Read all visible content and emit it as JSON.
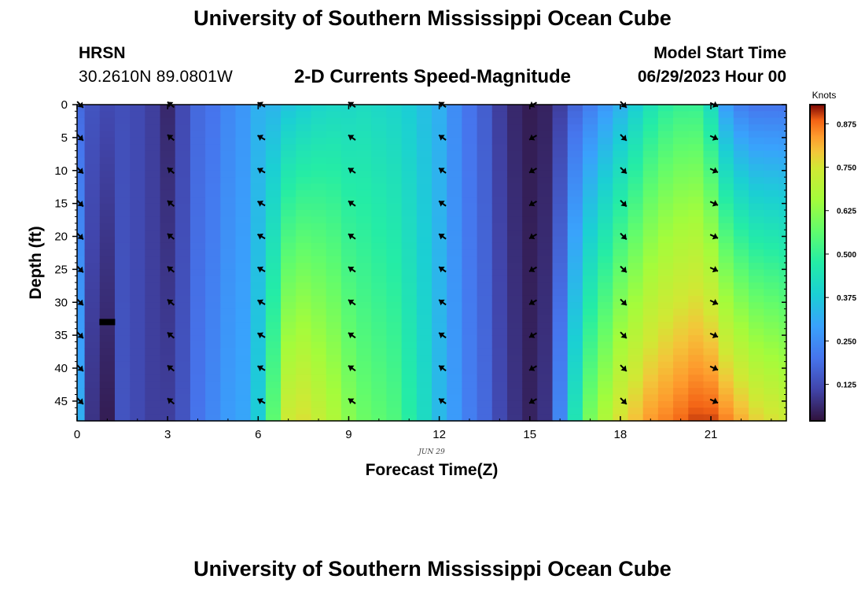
{
  "header": {
    "title": "University of Southern Mississippi Ocean Cube",
    "station": "HRSN",
    "coordinates": "30.2610N  89.0801W",
    "subtitle": "2-D Currents Speed-Magnitude",
    "model_start_label": "Model Start Time",
    "model_start_value": "06/29/2023 Hour 00"
  },
  "footer": {
    "title": "University of Southern Mississippi Ocean Cube"
  },
  "colors": {
    "arrow": "#000000",
    "gap_marker": "#000000"
  },
  "chart_data": {
    "type": "heatmap",
    "title": "2-D Currents Speed-Magnitude",
    "xlabel": "Forecast Time(Z)",
    "ylabel": "Depth (ft)",
    "date_label": "JUN 29",
    "xlim": [
      0,
      23.5
    ],
    "ylim": [
      0,
      48
    ],
    "x_ticks": [
      0,
      3,
      6,
      9,
      12,
      15,
      18,
      21
    ],
    "y_ticks": [
      0,
      5,
      10,
      15,
      20,
      25,
      30,
      35,
      40,
      45
    ],
    "colorbar": {
      "unit": "Knots",
      "range": [
        0.02,
        0.93
      ],
      "ticks": [
        "0.125",
        "0.250",
        "0.375",
        "0.500",
        "0.625",
        "0.750",
        "0.875"
      ],
      "tick_values": [
        0.125,
        0.25,
        0.375,
        0.5,
        0.625,
        0.75,
        0.875
      ]
    },
    "hours": [
      0,
      0.5,
      1,
      1.5,
      2,
      2.5,
      3,
      3.5,
      4,
      4.5,
      5,
      5.5,
      6,
      6.5,
      7,
      7.5,
      8,
      8.5,
      9,
      9.5,
      10,
      10.5,
      11,
      11.5,
      12,
      12.5,
      13,
      13.5,
      14,
      14.5,
      15,
      15.5,
      16,
      16.5,
      17,
      17.5,
      18,
      18.5,
      19,
      19.5,
      20,
      20.5,
      21,
      21.5,
      22,
      22.5,
      23,
      23.5
    ],
    "surface_speed_knots": [
      0.18,
      0.14,
      0.12,
      0.13,
      0.12,
      0.1,
      0.06,
      0.12,
      0.18,
      0.2,
      0.24,
      0.27,
      0.32,
      0.33,
      0.36,
      0.38,
      0.4,
      0.41,
      0.41,
      0.42,
      0.41,
      0.4,
      0.38,
      0.35,
      0.32,
      0.25,
      0.2,
      0.16,
      0.1,
      0.06,
      0.04,
      0.05,
      0.1,
      0.17,
      0.22,
      0.27,
      0.32,
      0.38,
      0.44,
      0.48,
      0.5,
      0.5,
      0.42,
      0.28,
      0.22,
      0.2,
      0.2,
      0.2
    ],
    "bottom_speed_knots": [
      0.32,
      0.08,
      0.04,
      0.14,
      0.12,
      0.1,
      0.1,
      0.14,
      0.2,
      0.24,
      0.28,
      0.3,
      0.38,
      0.56,
      0.74,
      0.76,
      0.72,
      0.68,
      0.62,
      0.58,
      0.56,
      0.54,
      0.48,
      0.42,
      0.34,
      0.28,
      0.22,
      0.18,
      0.12,
      0.08,
      0.05,
      0.08,
      0.24,
      0.45,
      0.6,
      0.68,
      0.76,
      0.8,
      0.84,
      0.86,
      0.88,
      0.9,
      0.9,
      0.86,
      0.82,
      0.78,
      0.76,
      0.74
    ],
    "arrows": {
      "hours": [
        0,
        3,
        6,
        9,
        12,
        15,
        18,
        21
      ],
      "depths": [
        0,
        5,
        10,
        15,
        20,
        25,
        30,
        35,
        40,
        45
      ],
      "direction_deg": [
        45,
        220,
        210,
        215,
        215,
        150,
        45,
        25
      ],
      "direction_note": "screen degrees, 0 = toward right, positive = clockwise"
    },
    "gap_marker": {
      "hour": 1.0,
      "depth": 33
    }
  }
}
